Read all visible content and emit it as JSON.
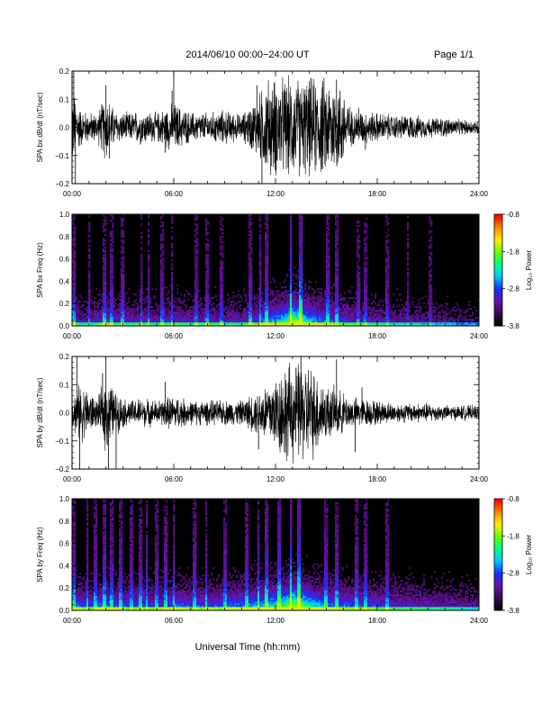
{
  "header": {
    "title": "2014/06/10   00:00−24:00 UT",
    "page": "Page 1/1"
  },
  "footer": {
    "xlabel": "Universal Time (hh:mm)"
  },
  "colorbar": {
    "label": "Log₁₀ Power",
    "ticks": [
      "-0.8",
      "-1.8",
      "-2.8",
      "-3.8"
    ],
    "tick_values": [
      -0.8,
      -1.8,
      -2.8,
      -3.8
    ],
    "range": [
      -3.8,
      -0.8
    ],
    "colors": [
      "#000000",
      "#3a0a55",
      "#6a12a8",
      "#1530ff",
      "#00c8ff",
      "#00ff80",
      "#66ff00",
      "#ffee00",
      "#ff8800",
      "#ff0000"
    ]
  },
  "chart_data": [
    {
      "type": "line",
      "ylabel": "SPA bx dB/dt (nT/sec)",
      "x_ticks": [
        "00:00",
        "06:00",
        "12:00",
        "18:00",
        "24:00"
      ],
      "x_range_hours": [
        0,
        24
      ],
      "ylim": [
        -0.2,
        0.2
      ],
      "y_ticks": [
        "0.2",
        "0.1",
        "0.0",
        "−0.1",
        "−0.2"
      ],
      "y_tick_values": [
        0.2,
        0.1,
        0.0,
        -0.1,
        -0.2
      ],
      "line_color": "#000000",
      "envelope": {
        "hours": [
          0,
          0.5,
          1,
          1.5,
          2,
          2.5,
          3,
          3.5,
          4,
          5,
          5.5,
          6,
          7,
          8,
          9,
          9.5,
          10,
          10.5,
          11,
          11.5,
          12,
          12.5,
          13,
          13.5,
          14,
          14.5,
          15,
          15.5,
          16,
          16.5,
          17,
          18,
          19,
          20,
          21,
          22,
          23,
          24
        ],
        "amplitude": [
          0.16,
          0.08,
          0.06,
          0.06,
          0.14,
          0.07,
          0.06,
          0.06,
          0.07,
          0.06,
          0.08,
          0.1,
          0.06,
          0.06,
          0.07,
          0.06,
          0.05,
          0.09,
          0.13,
          0.2,
          0.2,
          0.2,
          0.2,
          0.2,
          0.2,
          0.2,
          0.2,
          0.2,
          0.16,
          0.07,
          0.07,
          0.06,
          0.05,
          0.05,
          0.04,
          0.04,
          0.03,
          0.03
        ]
      },
      "spikes": [
        {
          "hour": 0.1,
          "value": 0.2
        },
        {
          "hour": 0.2,
          "value": -0.2
        },
        {
          "hour": 2.0,
          "value": 0.15
        },
        {
          "hour": 2.2,
          "value": -0.11
        },
        {
          "hour": 5.5,
          "value": -0.09
        },
        {
          "hour": 5.9,
          "value": 0.13
        },
        {
          "hour": 6.0,
          "value": 0.2
        },
        {
          "hour": 10.9,
          "value": 0.15
        },
        {
          "hour": 11.2,
          "value": -0.2
        },
        {
          "hour": 15.6,
          "value": 0.17
        },
        {
          "hour": 16.9,
          "value": 0.07
        },
        {
          "hour": 17.3,
          "value": -0.08
        }
      ]
    },
    {
      "type": "heatmap",
      "ylabel": "SPA bx Freq (Hz)",
      "x_ticks": [
        "00:00",
        "06:00",
        "12:00",
        "18:00",
        "24:00"
      ],
      "x_range_hours": [
        0,
        24
      ],
      "ylim": [
        0.0,
        1.0
      ],
      "y_ticks": [
        "1.0",
        "0.8",
        "0.6",
        "0.4",
        "0.2",
        "0.0"
      ],
      "y_tick_values": [
        1.0,
        0.8,
        0.6,
        0.4,
        0.2,
        0.0
      ],
      "color_range": [
        -3.8,
        -0.8
      ],
      "activity": {
        "hours": [
          0,
          0.5,
          1,
          1.5,
          2,
          2.5,
          3,
          3.5,
          4,
          5,
          5.5,
          6,
          7,
          8,
          9,
          9.5,
          10,
          10.5,
          11,
          11.5,
          12,
          12.5,
          13,
          13.5,
          14,
          14.5,
          15,
          15.5,
          16,
          16.5,
          17,
          18,
          19,
          20,
          21,
          22,
          23,
          24
        ],
        "level": [
          0.5,
          0.25,
          0.3,
          0.35,
          0.45,
          0.3,
          0.35,
          0.3,
          0.35,
          0.3,
          0.35,
          0.35,
          0.3,
          0.35,
          0.3,
          0.35,
          0.3,
          0.4,
          0.45,
          0.55,
          0.6,
          0.7,
          1.0,
          0.85,
          0.65,
          0.55,
          0.5,
          0.45,
          0.4,
          0.35,
          0.3,
          0.3,
          0.25,
          0.25,
          0.2,
          0.2,
          0.15,
          0.15
        ]
      },
      "stripes_hours": [
        0.1,
        1.0,
        1.9,
        2.3,
        3.0,
        4.1,
        4.5,
        5.3,
        5.9,
        7.3,
        8.0,
        8.8,
        10.5,
        11.1,
        11.5,
        12.9,
        13.5,
        15.1,
        15.6,
        16.9,
        17.3,
        18.6,
        19.8,
        21.1
      ]
    },
    {
      "type": "line",
      "ylabel": "SPA by dB/dt (nT/sec)",
      "x_ticks": [
        "00:00",
        "06:00",
        "12:00",
        "18:00",
        "24:00"
      ],
      "x_range_hours": [
        0,
        24
      ],
      "ylim": [
        -0.2,
        0.2
      ],
      "y_ticks": [
        "0.2",
        "0.1",
        "0.0",
        "−0.1",
        "−0.2"
      ],
      "y_tick_values": [
        0.2,
        0.1,
        0.0,
        -0.1,
        -0.2
      ],
      "line_color": "#000000",
      "envelope": {
        "hours": [
          0,
          0.5,
          1,
          1.5,
          2,
          2.5,
          3,
          3.5,
          4,
          5,
          5.5,
          6,
          7,
          8,
          9,
          9.5,
          10,
          10.5,
          11,
          11.5,
          12,
          12.5,
          13,
          13.5,
          14,
          14.5,
          15,
          15.5,
          16,
          16.5,
          17,
          18,
          19,
          20,
          21,
          22,
          23,
          24
        ],
        "amplitude": [
          0.07,
          0.12,
          0.09,
          0.05,
          0.16,
          0.09,
          0.06,
          0.05,
          0.06,
          0.05,
          0.06,
          0.07,
          0.05,
          0.05,
          0.05,
          0.05,
          0.05,
          0.07,
          0.09,
          0.13,
          0.15,
          0.2,
          0.2,
          0.2,
          0.2,
          0.16,
          0.11,
          0.1,
          0.08,
          0.06,
          0.06,
          0.05,
          0.04,
          0.04,
          0.04,
          0.03,
          0.03,
          0.03
        ]
      },
      "spikes": [
        {
          "hour": 0.3,
          "value": 0.2
        },
        {
          "hour": 0.45,
          "value": -0.2
        },
        {
          "hour": 2.0,
          "value": 0.2
        },
        {
          "hour": 2.15,
          "value": -0.2
        },
        {
          "hour": 1.8,
          "value": 0.14
        },
        {
          "hour": 2.6,
          "value": -0.2
        },
        {
          "hour": 5.5,
          "value": 0.11
        },
        {
          "hour": 11.0,
          "value": -0.13
        },
        {
          "hour": 13.5,
          "value": 0.2
        },
        {
          "hour": 15.6,
          "value": 0.19
        },
        {
          "hour": 16.7,
          "value": -0.14
        },
        {
          "hour": 17.1,
          "value": 0.09
        }
      ]
    },
    {
      "type": "heatmap",
      "ylabel": "SPA by Freq (Hz)",
      "x_ticks": [
        "00:00",
        "06:00",
        "12:00",
        "18:00",
        "24:00"
      ],
      "x_range_hours": [
        0,
        24
      ],
      "ylim": [
        0.0,
        1.0
      ],
      "y_ticks": [
        "1.0",
        "0.8",
        "0.6",
        "0.4",
        "0.2",
        "0.0"
      ],
      "y_tick_values": [
        1.0,
        0.8,
        0.6,
        0.4,
        0.2,
        0.0
      ],
      "color_range": [
        -3.8,
        -0.8
      ],
      "activity": {
        "hours": [
          0,
          0.5,
          1,
          1.5,
          2,
          2.5,
          3,
          3.5,
          4,
          5,
          5.5,
          6,
          7,
          8,
          9,
          9.5,
          10,
          10.5,
          11,
          11.5,
          12,
          12.5,
          13,
          13.5,
          14,
          14.5,
          15,
          15.5,
          16,
          16.5,
          17,
          18,
          19,
          20,
          21,
          22,
          23,
          24
        ],
        "level": [
          0.55,
          0.45,
          0.4,
          0.45,
          0.55,
          0.45,
          0.45,
          0.4,
          0.45,
          0.4,
          0.45,
          0.5,
          0.45,
          0.45,
          0.45,
          0.5,
          0.5,
          0.55,
          0.6,
          0.65,
          0.7,
          0.8,
          1.0,
          0.9,
          0.75,
          0.6,
          0.55,
          0.5,
          0.5,
          0.45,
          0.45,
          0.4,
          0.35,
          0.35,
          0.3,
          0.3,
          0.25,
          0.25
        ]
      },
      "stripes_hours": [
        0.1,
        0.9,
        1.4,
        1.9,
        2.3,
        2.9,
        3.5,
        4.0,
        4.4,
        5.0,
        5.5,
        6.0,
        7.2,
        7.9,
        9.0,
        10.3,
        11.0,
        11.5,
        12.2,
        12.9,
        13.4,
        15.0,
        15.6,
        16.8,
        17.3,
        18.6
      ]
    }
  ]
}
